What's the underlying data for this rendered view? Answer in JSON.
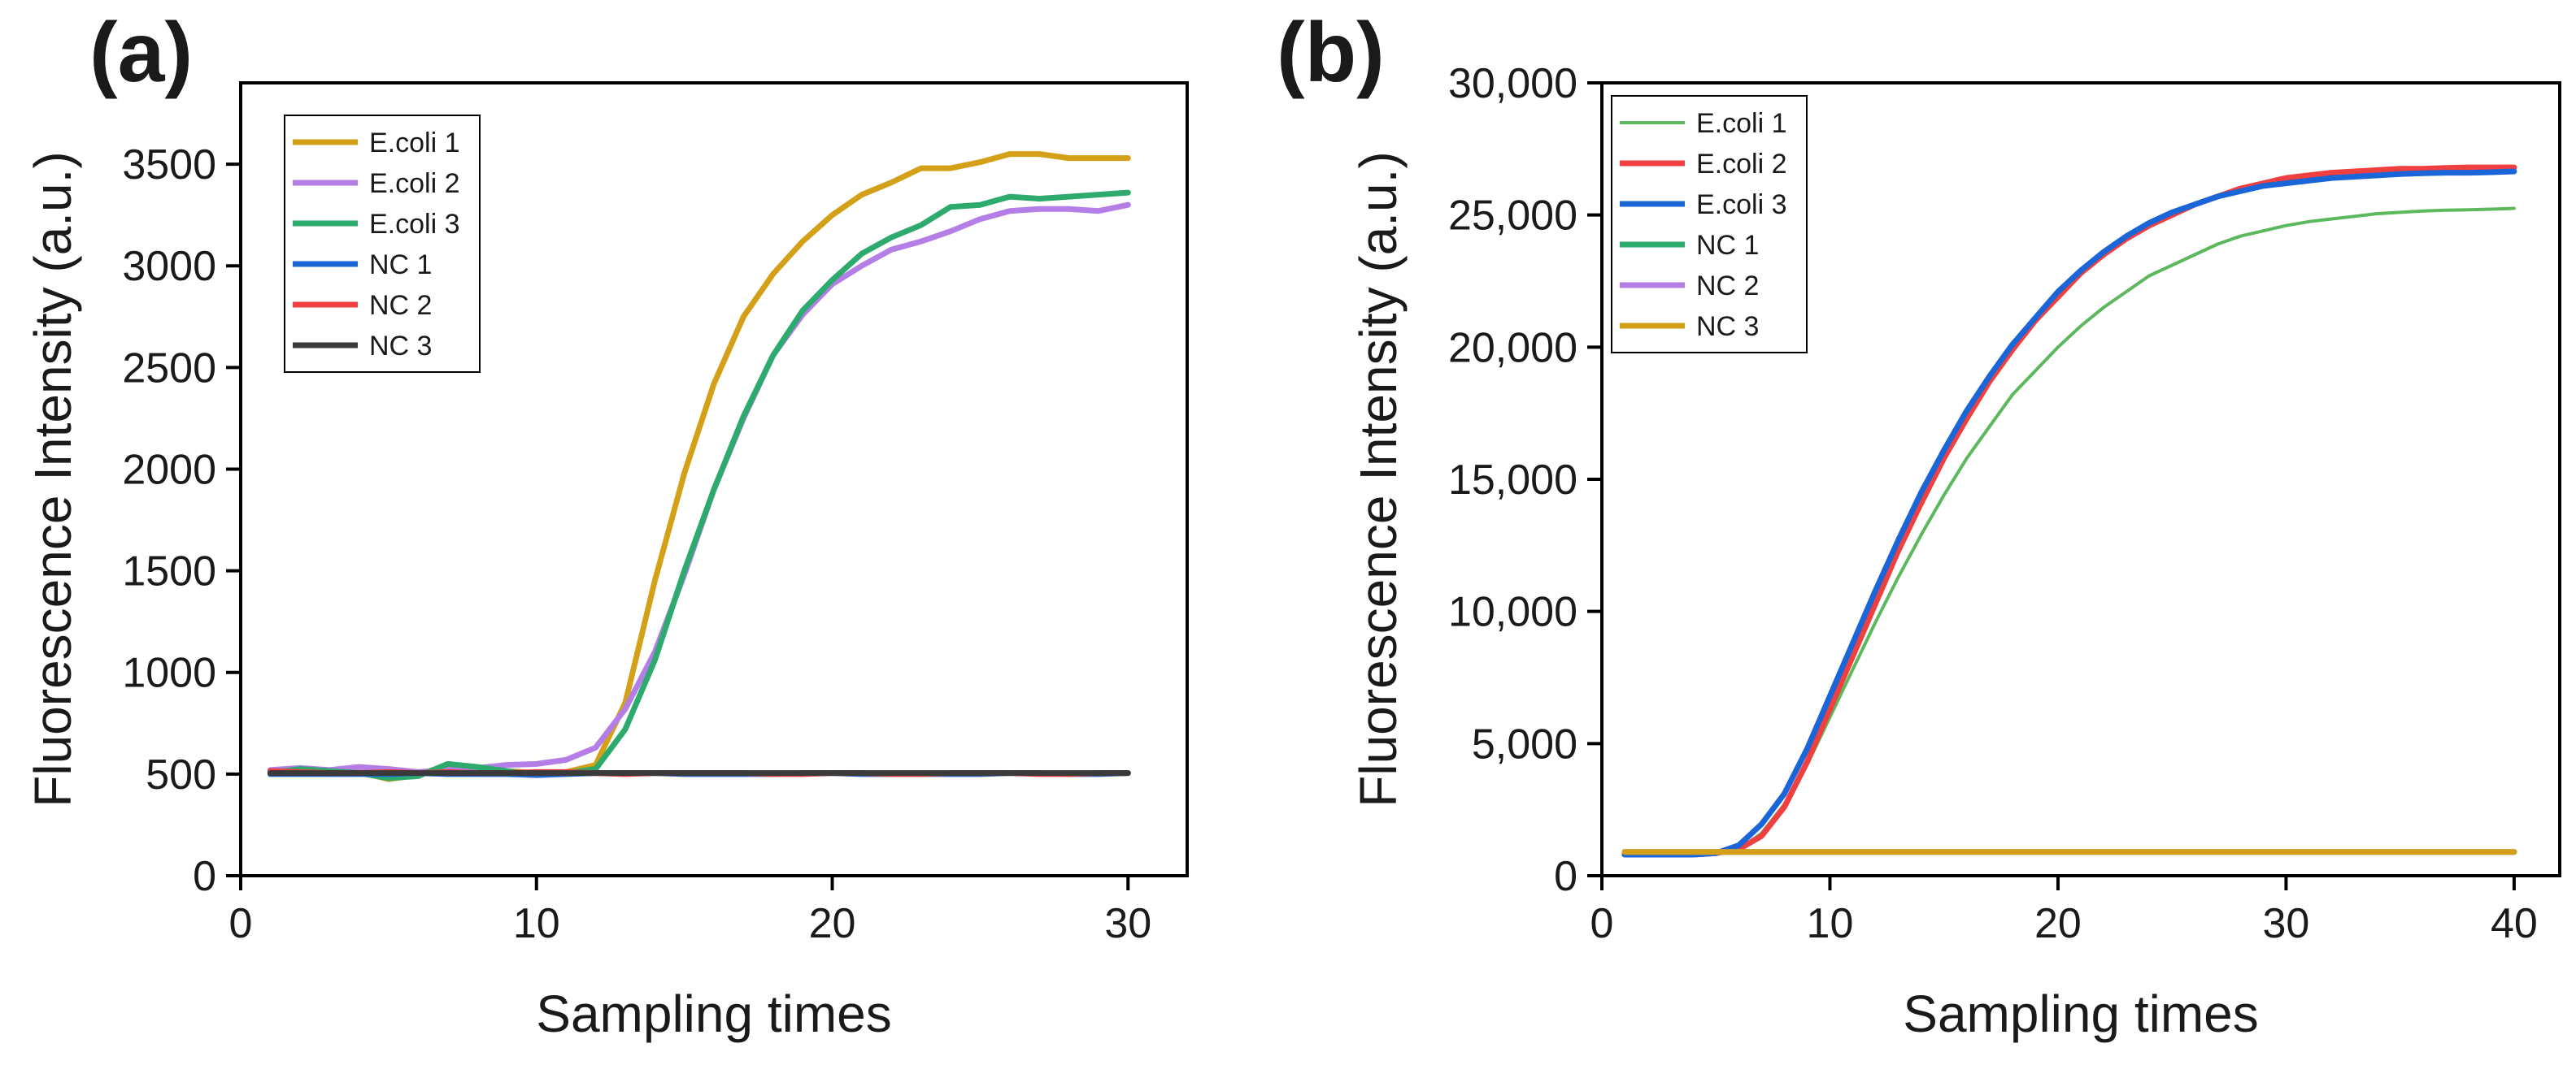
{
  "chart_data": [
    {
      "panel_label": "(a)",
      "type": "line",
      "xlabel": "Sampling times",
      "ylabel": "Fluorescence Intensity (a.u.)",
      "xlim": [
        0,
        32
      ],
      "ylim": [
        0,
        3900
      ],
      "xticks": [
        0,
        10,
        20,
        30
      ],
      "xtick_labels": [
        "0",
        "10",
        "20",
        "30"
      ],
      "yticks": [
        0,
        500,
        1000,
        1500,
        2000,
        2500,
        3000,
        3500
      ],
      "ytick_labels": [
        "0",
        "500",
        "1000",
        "1500",
        "2000",
        "2500",
        "3000",
        "3500"
      ],
      "legend_position": "top-left",
      "x": [
        1,
        2,
        3,
        4,
        5,
        6,
        7,
        8,
        9,
        10,
        11,
        12,
        13,
        14,
        15,
        16,
        17,
        18,
        19,
        20,
        21,
        22,
        23,
        24,
        25,
        26,
        27,
        28,
        29,
        30
      ],
      "series": [
        {
          "name": "E.coli 1",
          "color": "#d4a017",
          "values": [
            510,
            515,
            505,
            510,
            475,
            495,
            545,
            530,
            515,
            505,
            510,
            545,
            850,
            1450,
            1980,
            2420,
            2750,
            2960,
            3120,
            3250,
            3350,
            3410,
            3480,
            3480,
            3510,
            3550,
            3550,
            3530,
            3530,
            3530
          ]
        },
        {
          "name": "E.coli 2",
          "color": "#b57ee6",
          "values": [
            520,
            530,
            520,
            535,
            525,
            510,
            520,
            530,
            545,
            550,
            570,
            630,
            820,
            1100,
            1480,
            1900,
            2250,
            2560,
            2760,
            2910,
            3000,
            3080,
            3120,
            3170,
            3230,
            3270,
            3280,
            3280,
            3270,
            3300
          ]
        },
        {
          "name": "E.coli 3",
          "color": "#2daa6e",
          "values": [
            505,
            525,
            515,
            505,
            480,
            490,
            550,
            535,
            515,
            495,
            505,
            525,
            720,
            1060,
            1500,
            1900,
            2260,
            2560,
            2780,
            2930,
            3060,
            3140,
            3200,
            3290,
            3300,
            3340,
            3330,
            3340,
            3350,
            3360
          ]
        },
        {
          "name": "NC 1",
          "color": "#1a66d9",
          "values": [
            500,
            500,
            500,
            500,
            500,
            505,
            500,
            500,
            500,
            495,
            500,
            505,
            505,
            505,
            500,
            500,
            500,
            500,
            505,
            505,
            500,
            500,
            500,
            500,
            500,
            505,
            505,
            500,
            500,
            505
          ]
        },
        {
          "name": "NC 2",
          "color": "#ef3f3f",
          "values": [
            515,
            510,
            505,
            505,
            510,
            505,
            510,
            505,
            505,
            510,
            510,
            505,
            500,
            505,
            505,
            505,
            505,
            500,
            500,
            505,
            505,
            500,
            500,
            505,
            505,
            505,
            500,
            500,
            505,
            505
          ]
        },
        {
          "name": "NC 3",
          "color": "#3a3a3a",
          "values": [
            505,
            505,
            505,
            505,
            505,
            505,
            505,
            505,
            505,
            505,
            505,
            505,
            505,
            505,
            505,
            505,
            505,
            505,
            505,
            505,
            505,
            505,
            505,
            505,
            505,
            505,
            505,
            505,
            505,
            505
          ]
        }
      ]
    },
    {
      "panel_label": "(b)",
      "type": "line",
      "xlabel": "Sampling times",
      "ylabel": "Fluorescence Intensity (a.u.)",
      "xlim": [
        0,
        42
      ],
      "ylim": [
        0,
        30000
      ],
      "xticks": [
        0,
        10,
        20,
        30,
        40
      ],
      "xtick_labels": [
        "0",
        "10",
        "20",
        "30",
        "40"
      ],
      "yticks": [
        0,
        5000,
        10000,
        15000,
        20000,
        25000,
        30000
      ],
      "ytick_labels": [
        "0",
        "5,000",
        "10,000",
        "15,000",
        "20,000",
        "25,000",
        "30,000"
      ],
      "legend_position": "top-left",
      "x": [
        1,
        2,
        3,
        4,
        5,
        6,
        7,
        8,
        9,
        10,
        11,
        12,
        13,
        14,
        15,
        16,
        17,
        18,
        19,
        20,
        21,
        22,
        23,
        24,
        25,
        26,
        27,
        28,
        29,
        30,
        31,
        32,
        33,
        34,
        35,
        36,
        37,
        38,
        39,
        40
      ],
      "series": [
        {
          "name": "E.coli 1",
          "color": "#5cb85c",
          "values": [
            800,
            800,
            800,
            800,
            850,
            1000,
            1600,
            2700,
            4200,
            6000,
            7800,
            9600,
            11300,
            12900,
            14400,
            15800,
            17000,
            18200,
            19100,
            20000,
            20800,
            21500,
            22100,
            22700,
            23100,
            23500,
            23900,
            24200,
            24400,
            24600,
            24750,
            24850,
            24950,
            25050,
            25100,
            25150,
            25180,
            25200,
            25220,
            25250
          ]
        },
        {
          "name": "E.coli 2",
          "color": "#ef3f3f",
          "values": [
            800,
            800,
            800,
            800,
            850,
            1000,
            1500,
            2600,
            4300,
            6300,
            8300,
            10300,
            12300,
            14100,
            15800,
            17300,
            18700,
            19900,
            21000,
            21900,
            22800,
            23500,
            24100,
            24600,
            25000,
            25400,
            25700,
            26000,
            26200,
            26400,
            26500,
            26600,
            26650,
            26700,
            26750,
            26750,
            26780,
            26800,
            26800,
            26800
          ]
        },
        {
          "name": "E.coli 3",
          "color": "#1a66d9",
          "values": [
            800,
            800,
            800,
            800,
            850,
            1150,
            1950,
            3100,
            4800,
            6800,
            8800,
            10800,
            12700,
            14500,
            16100,
            17600,
            18900,
            20100,
            21100,
            22100,
            22900,
            23600,
            24200,
            24700,
            25100,
            25400,
            25700,
            25900,
            26100,
            26200,
            26300,
            26400,
            26450,
            26500,
            26550,
            26580,
            26600,
            26600,
            26620,
            26650
          ]
        },
        {
          "name": "NC 1",
          "color": "#2daa6e",
          "values": [
            900,
            900,
            900,
            900,
            900,
            900,
            900,
            900,
            900,
            900,
            900,
            900,
            900,
            900,
            900,
            900,
            900,
            900,
            900,
            900,
            900,
            900,
            900,
            900,
            900,
            900,
            900,
            900,
            900,
            900,
            900,
            900,
            900,
            900,
            900,
            900,
            900,
            900,
            900,
            900
          ]
        },
        {
          "name": "NC 2",
          "color": "#b57ee6",
          "values": [
            900,
            900,
            900,
            900,
            900,
            900,
            900,
            900,
            900,
            900,
            900,
            900,
            900,
            900,
            900,
            900,
            900,
            900,
            900,
            900,
            900,
            900,
            900,
            900,
            900,
            900,
            900,
            900,
            900,
            900,
            900,
            900,
            900,
            900,
            900,
            900,
            900,
            900,
            900,
            900
          ]
        },
        {
          "name": "NC 3",
          "color": "#d4a017",
          "values": [
            900,
            900,
            900,
            900,
            900,
            900,
            900,
            900,
            900,
            900,
            900,
            900,
            900,
            900,
            900,
            900,
            900,
            900,
            900,
            900,
            900,
            900,
            900,
            900,
            900,
            900,
            900,
            900,
            900,
            900,
            900,
            900,
            900,
            900,
            900,
            900,
            900,
            900,
            900,
            900
          ]
        }
      ]
    }
  ]
}
